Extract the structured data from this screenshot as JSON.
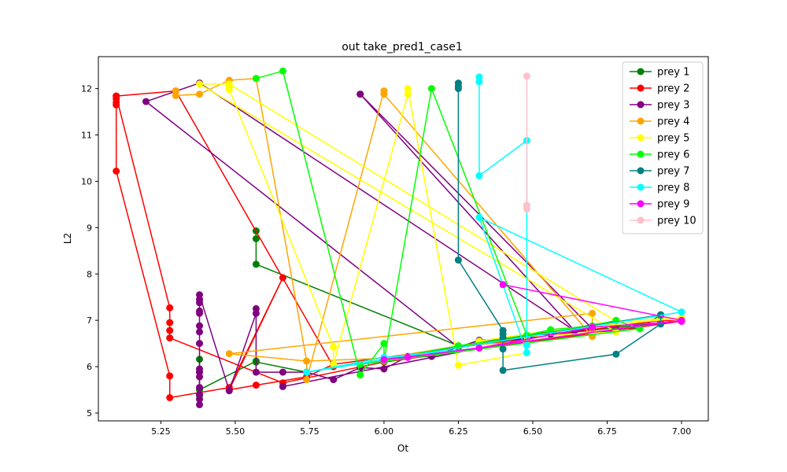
{
  "chart_data": {
    "type": "line",
    "title": "out take_pred1_case1",
    "xlabel": "Ot",
    "ylabel": "L2",
    "xlim": [
      5.04,
      7.09
    ],
    "ylim": [
      4.83,
      12.69
    ],
    "xticks": [
      5.25,
      5.5,
      5.75,
      6.0,
      6.25,
      6.5,
      6.75,
      7.0
    ],
    "xtick_labels": [
      "5.25",
      "5.50",
      "5.75",
      "6.00",
      "6.25",
      "6.50",
      "6.75",
      "7.00"
    ],
    "yticks": [
      5,
      6,
      7,
      8,
      9,
      10,
      11,
      12
    ],
    "ytick_labels": [
      "5",
      "6",
      "7",
      "8",
      "9",
      "10",
      "11",
      "12"
    ],
    "legend_position": "top-right",
    "series": [
      {
        "name": "prey 1",
        "color": "#008000",
        "points": [
          [
            5.57,
            8.93
          ],
          [
            5.57,
            8.76
          ],
          [
            5.57,
            8.21
          ],
          [
            6.25,
            6.45
          ],
          [
            6.78,
            6.98
          ],
          [
            6.78,
            6.82
          ],
          [
            6.86,
            6.82
          ],
          [
            6.93,
            7.12
          ],
          [
            6.93,
            6.95
          ],
          [
            6.4,
            6.57
          ],
          [
            5.74,
            5.88
          ],
          [
            5.57,
            6.1
          ],
          [
            5.57,
            6.12
          ],
          [
            5.38,
            5.5
          ],
          [
            5.38,
            5.38
          ],
          [
            5.38,
            6.16
          ]
        ]
      },
      {
        "name": "prey 2",
        "color": "#ff0000",
        "points": [
          [
            5.1,
            11.84
          ],
          [
            5.1,
            11.78
          ],
          [
            5.1,
            11.7
          ],
          [
            5.1,
            11.65
          ],
          [
            5.1,
            10.22
          ],
          [
            5.28,
            5.8
          ],
          [
            5.28,
            5.33
          ],
          [
            5.48,
            5.55
          ],
          [
            5.66,
            7.92
          ],
          [
            5.48,
            5.5
          ],
          [
            5.57,
            5.6
          ],
          [
            5.74,
            5.78
          ],
          [
            5.83,
            6.05
          ],
          [
            6.93,
            7.0
          ],
          [
            7.0,
            6.98
          ],
          [
            6.0,
            6.1
          ],
          [
            5.66,
            5.65
          ],
          [
            5.28,
            6.62
          ],
          [
            5.28,
            6.78
          ],
          [
            5.28,
            6.95
          ],
          [
            5.28,
            7.27
          ],
          [
            5.1,
            11.84
          ],
          [
            5.3,
            11.95
          ],
          [
            5.83,
            6.0
          ]
        ]
      },
      {
        "name": "prey 3",
        "color": "#800080",
        "points": [
          [
            5.38,
            5.18
          ],
          [
            5.38,
            5.3
          ],
          [
            5.38,
            5.4
          ],
          [
            5.38,
            5.55
          ],
          [
            5.38,
            5.78
          ],
          [
            5.38,
            5.88
          ],
          [
            5.38,
            5.95
          ],
          [
            5.38,
            6.5
          ],
          [
            5.38,
            6.75
          ],
          [
            5.38,
            6.88
          ],
          [
            5.38,
            7.15
          ],
          [
            5.38,
            7.2
          ],
          [
            5.38,
            7.38
          ],
          [
            5.38,
            7.45
          ],
          [
            5.38,
            7.55
          ],
          [
            5.48,
            5.48
          ],
          [
            5.57,
            7.15
          ],
          [
            5.57,
            7.25
          ],
          [
            5.57,
            5.88
          ],
          [
            5.66,
            5.88
          ],
          [
            5.74,
            5.88
          ],
          [
            5.83,
            5.72
          ],
          [
            5.92,
            5.98
          ],
          [
            6.0,
            5.95
          ],
          [
            6.08,
            6.22
          ],
          [
            6.16,
            6.22
          ],
          [
            6.32,
            6.57
          ],
          [
            6.48,
            6.6
          ],
          [
            6.56,
            6.7
          ],
          [
            6.64,
            6.77
          ],
          [
            6.7,
            6.82
          ],
          [
            5.92,
            11.88
          ],
          [
            5.92,
            11.88
          ],
          [
            6.64,
            6.78
          ],
          [
            5.38,
            12.12
          ],
          [
            5.2,
            11.72
          ],
          [
            6.25,
            6.42
          ],
          [
            6.56,
            6.7
          ],
          [
            5.66,
            5.57
          ]
        ]
      },
      {
        "name": "prey 4",
        "color": "#ffa500",
        "points": [
          [
            5.3,
            11.95
          ],
          [
            5.3,
            11.85
          ],
          [
            5.38,
            11.88
          ],
          [
            5.48,
            12.18
          ],
          [
            5.57,
            12.22
          ],
          [
            5.74,
            6.12
          ],
          [
            5.74,
            5.72
          ],
          [
            6.0,
            11.95
          ],
          [
            6.0,
            11.88
          ],
          [
            6.7,
            6.65
          ],
          [
            6.7,
            7.15
          ],
          [
            5.48,
            6.28
          ],
          [
            5.74,
            6.12
          ],
          [
            6.0,
            6.18
          ],
          [
            6.25,
            6.45
          ],
          [
            6.48,
            6.55
          ],
          [
            6.7,
            6.75
          ]
        ]
      },
      {
        "name": "prey 5",
        "color": "#ffff00",
        "points": [
          [
            5.48,
            12.05
          ],
          [
            5.48,
            11.98
          ],
          [
            5.83,
            6.42
          ],
          [
            5.83,
            6.05
          ],
          [
            6.08,
            11.88
          ],
          [
            6.08,
            12.0
          ],
          [
            6.25,
            6.03
          ],
          [
            6.48,
            6.3
          ],
          [
            6.48,
            6.65
          ],
          [
            6.78,
            6.75
          ],
          [
            5.38,
            12.1
          ],
          [
            5.48,
            12.1
          ],
          [
            6.78,
            6.98
          ],
          [
            7.0,
            7.05
          ],
          [
            6.56,
            6.78
          ],
          [
            6.32,
            6.55
          ]
        ]
      },
      {
        "name": "prey 6",
        "color": "#00ff00",
        "points": [
          [
            5.57,
            12.22
          ],
          [
            5.66,
            12.38
          ],
          [
            5.92,
            5.82
          ],
          [
            6.0,
            6.5
          ],
          [
            6.0,
            6.12
          ],
          [
            6.16,
            12.0
          ],
          [
            6.48,
            6.68
          ],
          [
            6.56,
            6.8
          ],
          [
            6.7,
            6.88
          ],
          [
            6.78,
            7.0
          ],
          [
            6.86,
            6.82
          ],
          [
            5.92,
            6.05
          ],
          [
            6.25,
            6.45
          ],
          [
            6.93,
            7.1
          ]
        ]
      },
      {
        "name": "prey 7",
        "color": "#008080",
        "points": [
          [
            6.25,
            12.12
          ],
          [
            6.25,
            12.05
          ],
          [
            6.25,
            12.0
          ],
          [
            6.25,
            8.3
          ],
          [
            6.4,
            6.78
          ],
          [
            6.4,
            6.7
          ],
          [
            6.4,
            6.62
          ],
          [
            6.4,
            6.38
          ],
          [
            6.4,
            5.92
          ],
          [
            6.78,
            6.27
          ],
          [
            6.93,
            6.92
          ],
          [
            6.93,
            7.12
          ],
          [
            5.74,
            5.88
          ]
        ]
      },
      {
        "name": "prey 8",
        "color": "#00ffff",
        "points": [
          [
            6.32,
            12.25
          ],
          [
            6.32,
            12.15
          ],
          [
            6.32,
            10.12
          ],
          [
            6.48,
            10.88
          ],
          [
            6.48,
            9.48
          ],
          [
            6.48,
            6.46
          ],
          [
            6.48,
            6.3
          ],
          [
            6.32,
            9.22
          ],
          [
            7.0,
            7.18
          ],
          [
            5.74,
            5.88
          ],
          [
            6.0,
            6.2
          ],
          [
            6.32,
            6.4
          ]
        ]
      },
      {
        "name": "prey 9",
        "color": "#ff00ff",
        "points": [
          [
            6.4,
            7.77
          ],
          [
            7.0,
            7.0
          ],
          [
            6.08,
            6.2
          ],
          [
            6.0,
            6.15
          ],
          [
            6.32,
            6.4
          ],
          [
            6.7,
            6.85
          ],
          [
            7.0,
            6.98
          ]
        ]
      },
      {
        "name": "prey 10",
        "color": "#ffc0cb",
        "points": [
          [
            6.48,
            12.27
          ],
          [
            6.48,
            9.4
          ],
          [
            6.48,
            9.48
          ]
        ]
      }
    ]
  }
}
